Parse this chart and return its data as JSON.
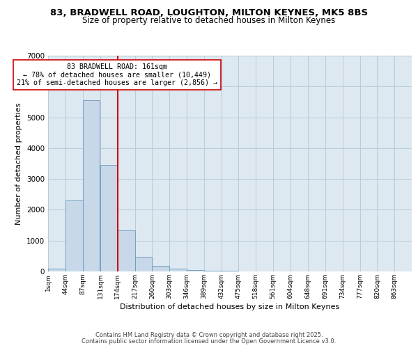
{
  "title_line1": "83, BRADWELL ROAD, LOUGHTON, MILTON KEYNES, MK5 8BS",
  "title_line2": "Size of property relative to detached houses in Milton Keynes",
  "xlabel": "Distribution of detached houses by size in Milton Keynes",
  "ylabel": "Number of detached properties",
  "bin_labels": [
    "1sqm",
    "44sqm",
    "87sqm",
    "131sqm",
    "174sqm",
    "217sqm",
    "260sqm",
    "303sqm",
    "346sqm",
    "389sqm",
    "432sqm",
    "475sqm",
    "518sqm",
    "561sqm",
    "604sqm",
    "648sqm",
    "691sqm",
    "734sqm",
    "777sqm",
    "820sqm",
    "863sqm"
  ],
  "bin_edges": [
    1,
    44,
    87,
    131,
    174,
    217,
    260,
    303,
    346,
    389,
    432,
    475,
    518,
    561,
    604,
    648,
    691,
    734,
    777,
    820,
    863
  ],
  "bin_width": 43,
  "bar_heights": [
    80,
    2300,
    5550,
    3450,
    1330,
    480,
    190,
    80,
    50,
    30,
    15,
    0,
    0,
    0,
    0,
    0,
    0,
    0,
    0,
    0,
    0
  ],
  "bar_color": "#c8d8e8",
  "bar_edgecolor": "#6699bb",
  "grid_color": "#b8ccd8",
  "vline_x": 174,
  "vline_color": "#cc0000",
  "annotation_text": "83 BRADWELL ROAD: 161sqm\n← 78% of detached houses are smaller (10,449)\n21% of semi-detached houses are larger (2,856) →",
  "annotation_box_edgecolor": "#cc0000",
  "ylim": [
    0,
    7000
  ],
  "plot_bg_color": "#dde8f0",
  "fig_bg_color": "#ffffff",
  "footer_line1": "Contains HM Land Registry data © Crown copyright and database right 2025.",
  "footer_line2": "Contains public sector information licensed under the Open Government Licence v3.0."
}
